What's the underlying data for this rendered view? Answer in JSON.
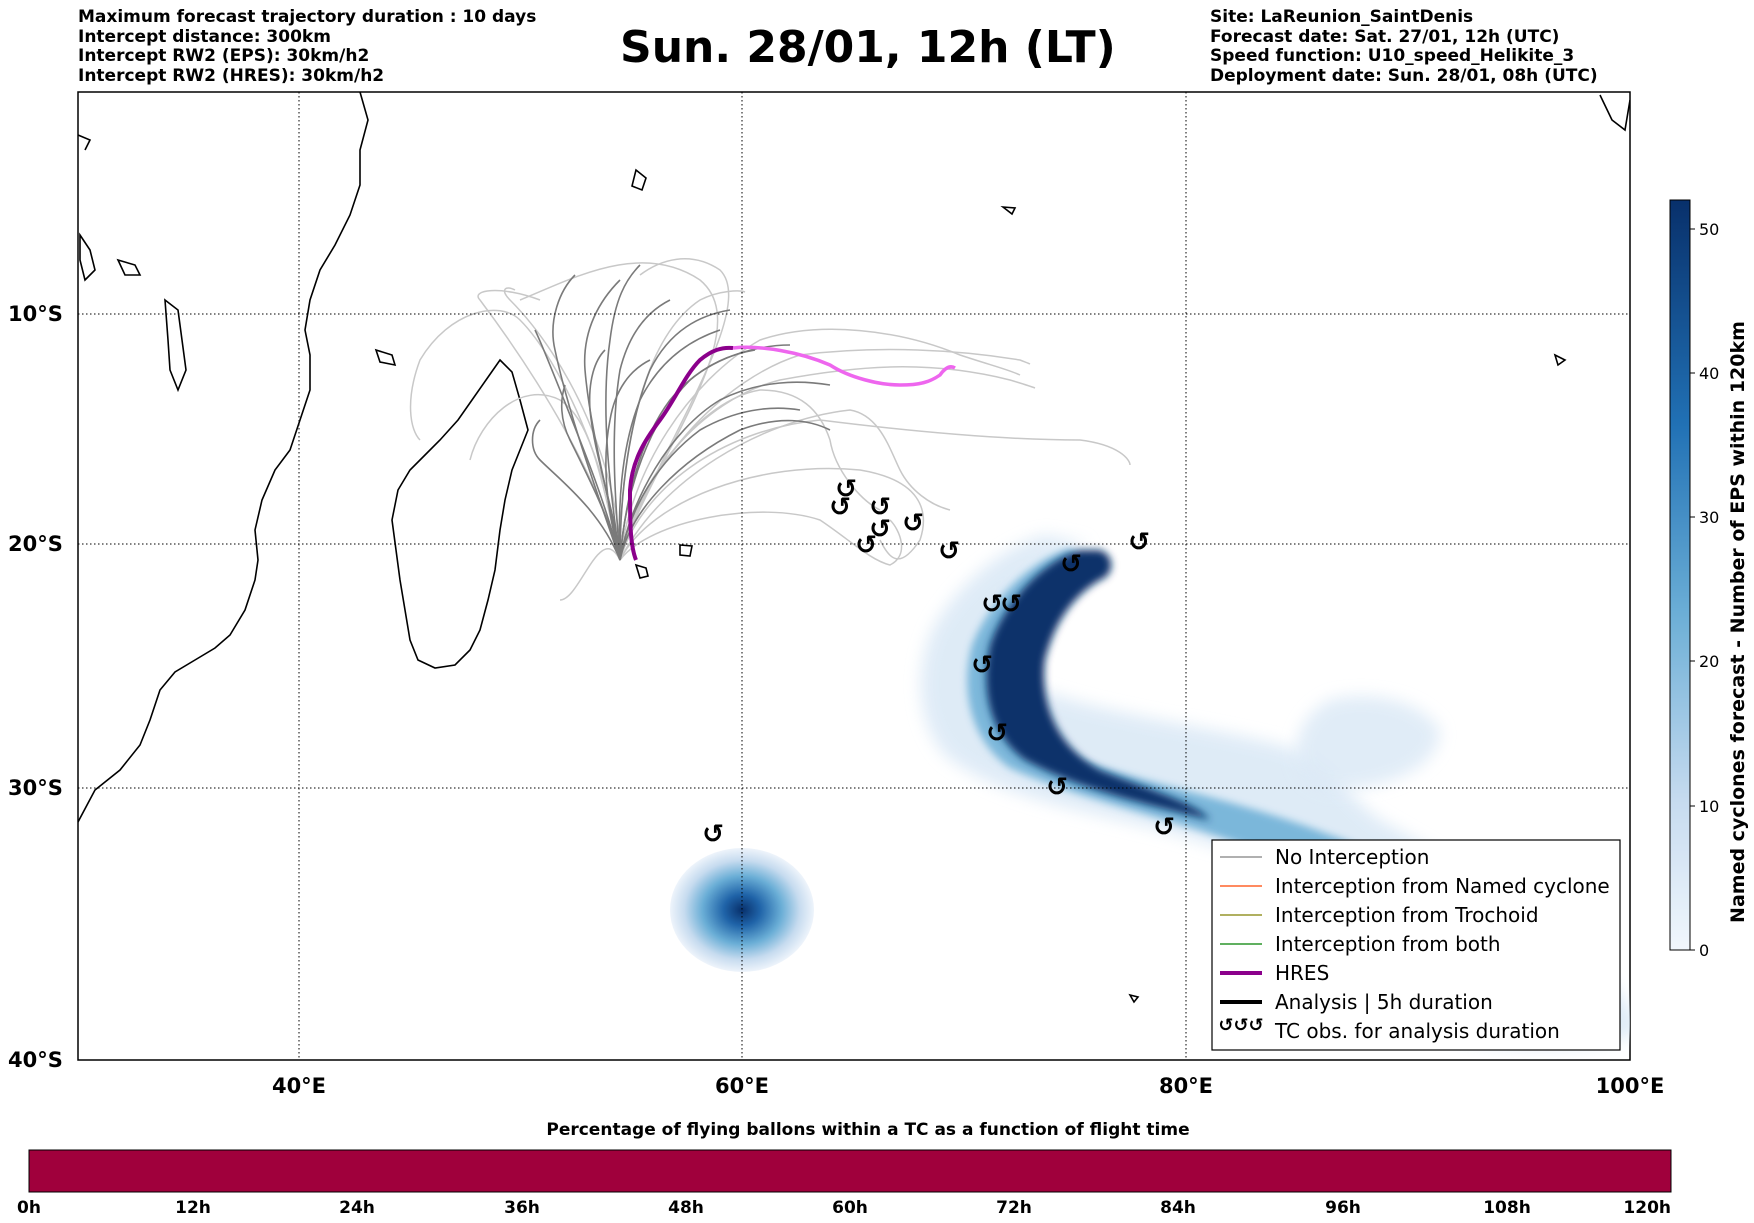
{
  "header_left": {
    "line1": "Maximum forecast trajectory duration : 10 days",
    "line2": "Intercept distance: 300km",
    "line3": "Intercept RW2 (EPS):  30km/h2",
    "line4": "Intercept RW2 (HRES): 30km/h2"
  },
  "title": "Sun. 28/01, 12h (LT)",
  "header_right": {
    "line1": "Site: LaReunion_SaintDenis",
    "line2": "Forecast date: Sat. 27/01, 12h (UTC)",
    "line3": "Speed function: U10_speed_Helikite_3",
    "line4": "Deployment date: Sun. 28/01, 08h (UTC)"
  },
  "map": {
    "lon_labels": [
      "40°E",
      "60°E",
      "80°E",
      "100°E"
    ],
    "lat_labels": [
      "10°S",
      "20°S",
      "30°S",
      "40°S"
    ],
    "lon_range": [
      30,
      100
    ],
    "lat_range": [
      -40,
      1
    ],
    "gridlines": true,
    "hres_track_color": "#8b008b",
    "hres_forecast_color": "#ee66ee",
    "eps_track_color": "#777777",
    "tc_symbol": "↺"
  },
  "legend": {
    "no_interception": "No Interception",
    "named_cyclone": "Interception from Named cyclone",
    "trochoid": "Interception from Trochoid",
    "both": "Interception from both",
    "hres": "HRES",
    "analysis": "Analysis | 5h duration",
    "tc_obs": "TC obs. for analysis duration",
    "colors": {
      "no_interception": "#808080",
      "named_cyclone": "#ff4500",
      "trochoid": "#808000",
      "both": "#008000",
      "hres": "#8b008b",
      "analysis": "#000000"
    }
  },
  "colorbar_right": {
    "label": "Named cyclones forecast - Number of EPS within 120km",
    "ticks": [
      "0",
      "10",
      "20",
      "30",
      "40",
      "50"
    ],
    "range": [
      0,
      52
    ]
  },
  "bottom_bar": {
    "title": "Percentage of flying ballons within a TC as a function of flight time",
    "ticks": [
      "0h",
      "12h",
      "24h",
      "36h",
      "48h",
      "60h",
      "72h",
      "84h",
      "96h",
      "108h",
      "120h"
    ],
    "color": "#a0003c"
  }
}
